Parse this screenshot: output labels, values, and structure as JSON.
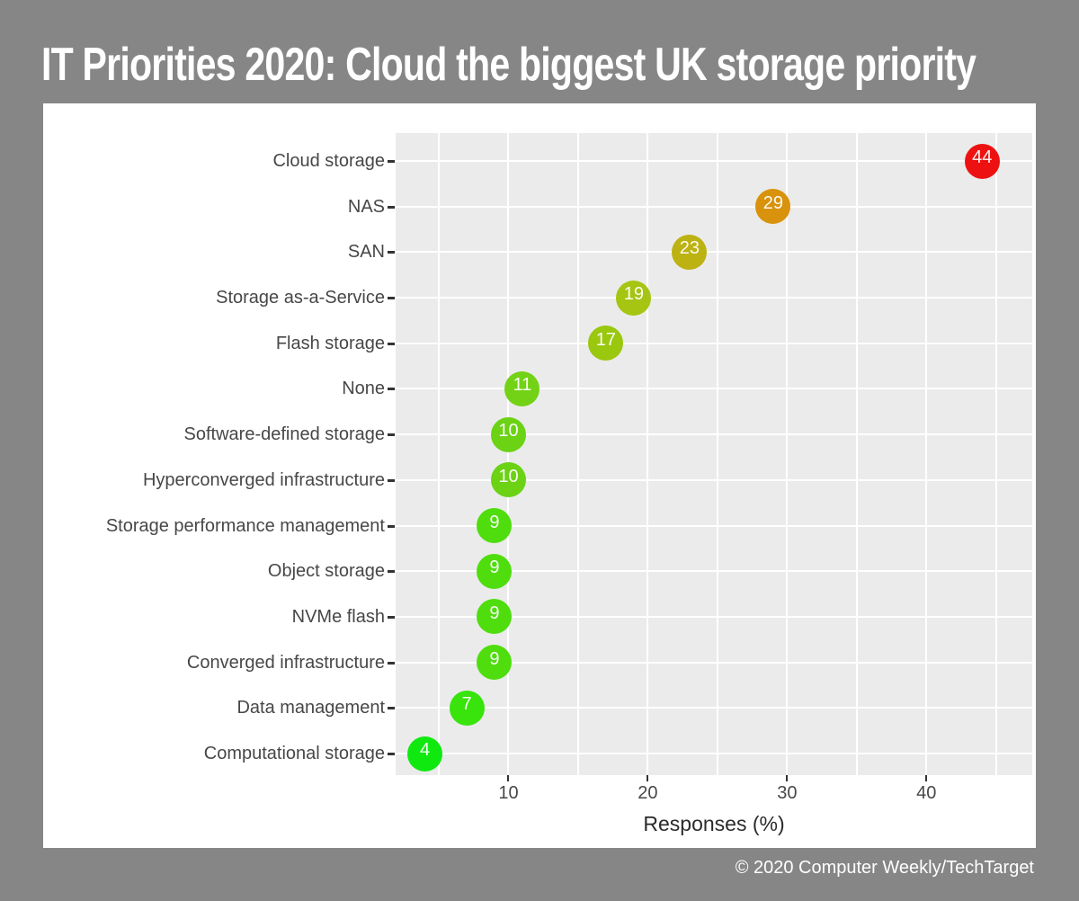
{
  "title": "IT Priorities 2020: Cloud the biggest UK storage priority",
  "footer": "© 2020 Computer Weekly/TechTarget",
  "colors": {
    "page_bg": "#868686",
    "card_bg": "#ffffff",
    "plot_bg": "#ebebeb",
    "grid": "#ffffff",
    "axis_text": "#474747",
    "axis_title_text": "#2b2b2b",
    "tick_mark": "#333333",
    "title_text": "#ffffff",
    "footer_text": "#ffffff",
    "dot_label": "#ffffff"
  },
  "chart_data": {
    "type": "scatter",
    "subtype": "horizontal-dot-plot",
    "title": "IT Priorities 2020: Cloud the biggest UK storage priority",
    "xlabel": "Responses (%)",
    "ylabel": "",
    "categories": [
      "Cloud storage",
      "NAS",
      "SAN",
      "Storage as-a-Service",
      "Flash storage",
      "None",
      "Software-defined storage",
      "Hyperconverged infrastructure",
      "Storage performance management",
      "Object storage",
      "NVMe flash",
      "Converged infrastructure",
      "Data management",
      "Computational storage"
    ],
    "values": [
      44,
      29,
      23,
      19,
      17,
      11,
      10,
      10,
      9,
      9,
      9,
      9,
      7,
      4
    ],
    "point_colors": [
      "#ee1111",
      "#d8920b",
      "#bcb211",
      "#a5c512",
      "#99c80e",
      "#73d215",
      "#6bd214",
      "#6bd214",
      "#4fdd0e",
      "#4fdd0e",
      "#4fdd0e",
      "#4fdd0e",
      "#38e40c",
      "#10e910"
    ],
    "data_labels": true,
    "x_ticks": [
      10,
      20,
      30,
      40
    ],
    "x_gridlines": [
      5,
      10,
      15,
      20,
      25,
      30,
      35,
      40,
      45
    ],
    "xlim": [
      1.9,
      47.6
    ],
    "grid": true,
    "legend": "none"
  }
}
